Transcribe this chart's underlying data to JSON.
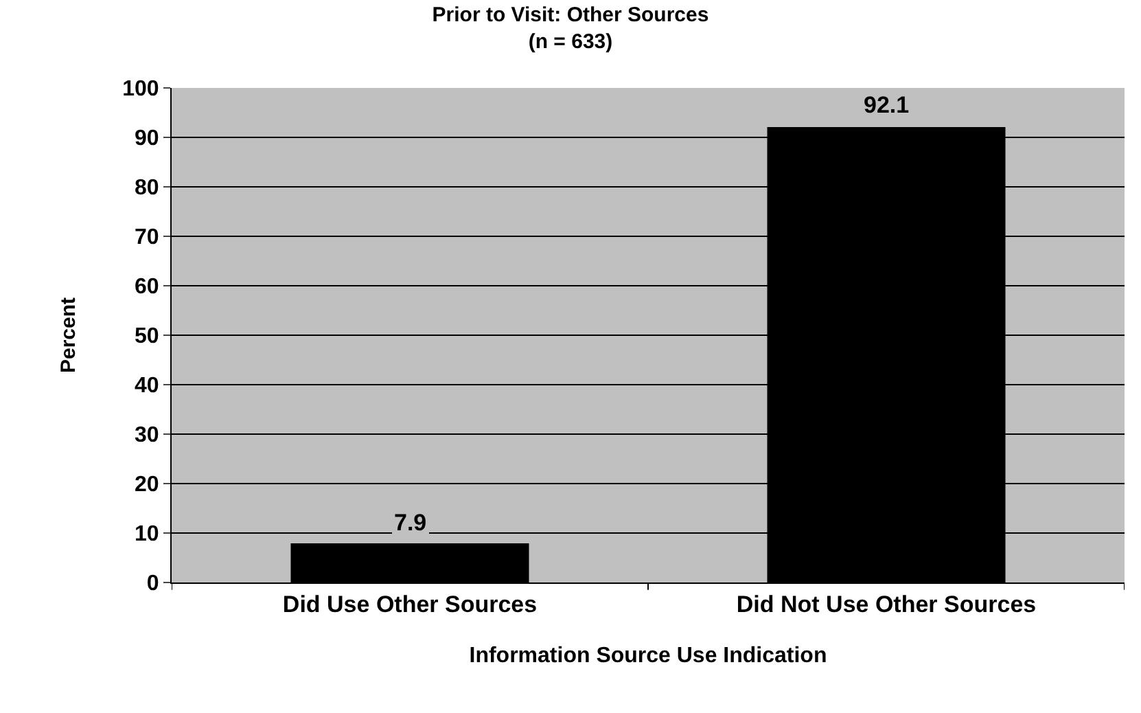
{
  "chart_data": {
    "type": "bar",
    "title": "Prior to Visit: Other Sources",
    "subtitle": "(n = 633)",
    "xlabel": "Information Source Use Indication",
    "ylabel": "Percent",
    "categories": [
      "Did Use Other Sources",
      "Did Not Use Other Sources"
    ],
    "values": [
      7.9,
      92.1
    ],
    "color": "#000000",
    "ylim": [
      0,
      100
    ],
    "yticks": [
      0,
      10,
      20,
      30,
      40,
      50,
      60,
      70,
      80,
      90,
      100
    ],
    "grid": "y",
    "data_labels": true
  }
}
